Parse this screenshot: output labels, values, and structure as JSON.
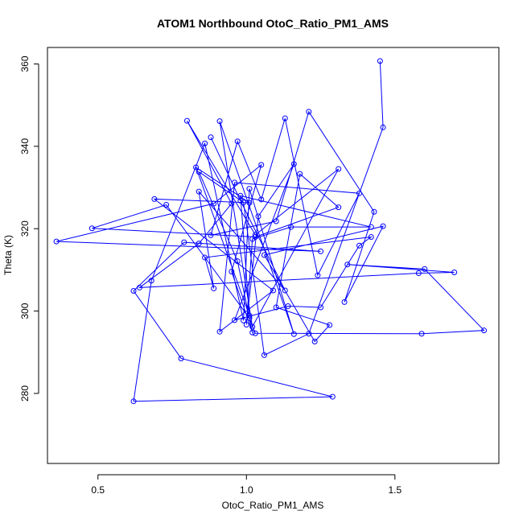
{
  "chart_data": {
    "type": "line",
    "title": "ATOM1 Northbound OtoC_Ratio_PM1_AMS",
    "xlabel": "OtoC_Ratio_PM1_AMS",
    "ylabel": "Theta (K)",
    "xlim": [
      0.33,
      1.85
    ],
    "ylim": [
      263,
      364
    ],
    "x_ticks": [
      0.5,
      1.0,
      1.5
    ],
    "x_tick_labels": [
      "0.5",
      "1.0",
      "1.5"
    ],
    "y_ticks": [
      280,
      300,
      320,
      340,
      360
    ],
    "y_tick_labels": [
      "280",
      "300",
      "320",
      "340",
      "360"
    ],
    "markers": "open-circle",
    "series": [
      {
        "color": "#0000ff",
        "points": [
          [
            1.45,
            360.7
          ],
          [
            1.46,
            344.6
          ],
          [
            1.21,
            294.5
          ],
          [
            1.06,
            289.3
          ],
          [
            0.99,
            326.4
          ],
          [
            0.84,
            333.8
          ],
          [
            0.97,
            312.1
          ],
          [
            1.02,
            294.8
          ],
          [
            0.95,
            309.6
          ],
          [
            1.05,
            335.5
          ],
          [
            0.89,
            326.1
          ],
          [
            0.36,
            316.9
          ],
          [
            1.25,
            314.5
          ],
          [
            0.79,
            316.7
          ],
          [
            0.62,
            304.9
          ],
          [
            0.78,
            288.5
          ],
          [
            1.29,
            279.2
          ],
          [
            0.62,
            278.1
          ],
          [
            0.68,
            307.4
          ],
          [
            0.86,
            340.7
          ],
          [
            0.99,
            297.7
          ],
          [
            1.01,
            329.7
          ],
          [
            1.16,
            294.4
          ],
          [
            0.91,
            346.1
          ],
          [
            1.02,
            296.2
          ],
          [
            1.31,
            334.5
          ],
          [
            1.03,
            318.5
          ],
          [
            0.8,
            346.2
          ],
          [
            0.95,
            326.1
          ],
          [
            0.84,
            316.4
          ],
          [
            0.64,
            305.7
          ],
          [
            1.58,
            309.2
          ],
          [
            1.7,
            309.4
          ],
          [
            1.34,
            311.3
          ],
          [
            1.6,
            310.2
          ],
          [
            1.8,
            295.3
          ],
          [
            1.59,
            294.5
          ],
          [
            1.03,
            294.6
          ],
          [
            1.01,
            298.3
          ],
          [
            0.73,
            325.8
          ],
          [
            0.48,
            320.1
          ],
          [
            1.03,
            318.0
          ],
          [
            1.31,
            325.2
          ],
          [
            1.18,
            333.3
          ],
          [
            1.1,
            300.9
          ],
          [
            1.28,
            296.6
          ],
          [
            1.23,
            292.6
          ],
          [
            1.06,
            313.6
          ],
          [
            1.46,
            320.6
          ],
          [
            1.33,
            302.2
          ],
          [
            1.43,
            324.1
          ],
          [
            1.21,
            348.4
          ],
          [
            1.1,
            321.8
          ],
          [
            0.88,
            318.4
          ],
          [
            0.97,
            341.2
          ],
          [
            1.05,
            327.1
          ],
          [
            1.13,
            346.8
          ],
          [
            1.24,
            308.7
          ],
          [
            1.38,
            328.6
          ],
          [
            0.96,
            331.2
          ],
          [
            0.91,
            295.0
          ],
          [
            1.09,
            305.0
          ],
          [
            0.69,
            327.2
          ],
          [
            1.01,
            326.3
          ],
          [
            0.83,
            334.9
          ],
          [
            1.01,
            298.9
          ],
          [
            0.98,
            328.0
          ],
          [
            1.42,
            320.4
          ],
          [
            1.15,
            320.4
          ],
          [
            1.02,
            317.5
          ],
          [
            1.0,
            296.7
          ],
          [
            1.04,
            323.0
          ],
          [
            1.16,
            335.7
          ],
          [
            0.96,
            297.8
          ],
          [
            1.14,
            301.2
          ],
          [
            1.25,
            300.9
          ],
          [
            1.38,
            315.9
          ],
          [
            1.42,
            318.0
          ],
          [
            0.86,
            313.0
          ],
          [
            0.89,
            305.5
          ],
          [
            0.84,
            329.0
          ],
          [
            1.13,
            305.0
          ],
          [
            0.98,
            326.8
          ],
          [
            0.88,
            342.2
          ]
        ]
      }
    ]
  }
}
